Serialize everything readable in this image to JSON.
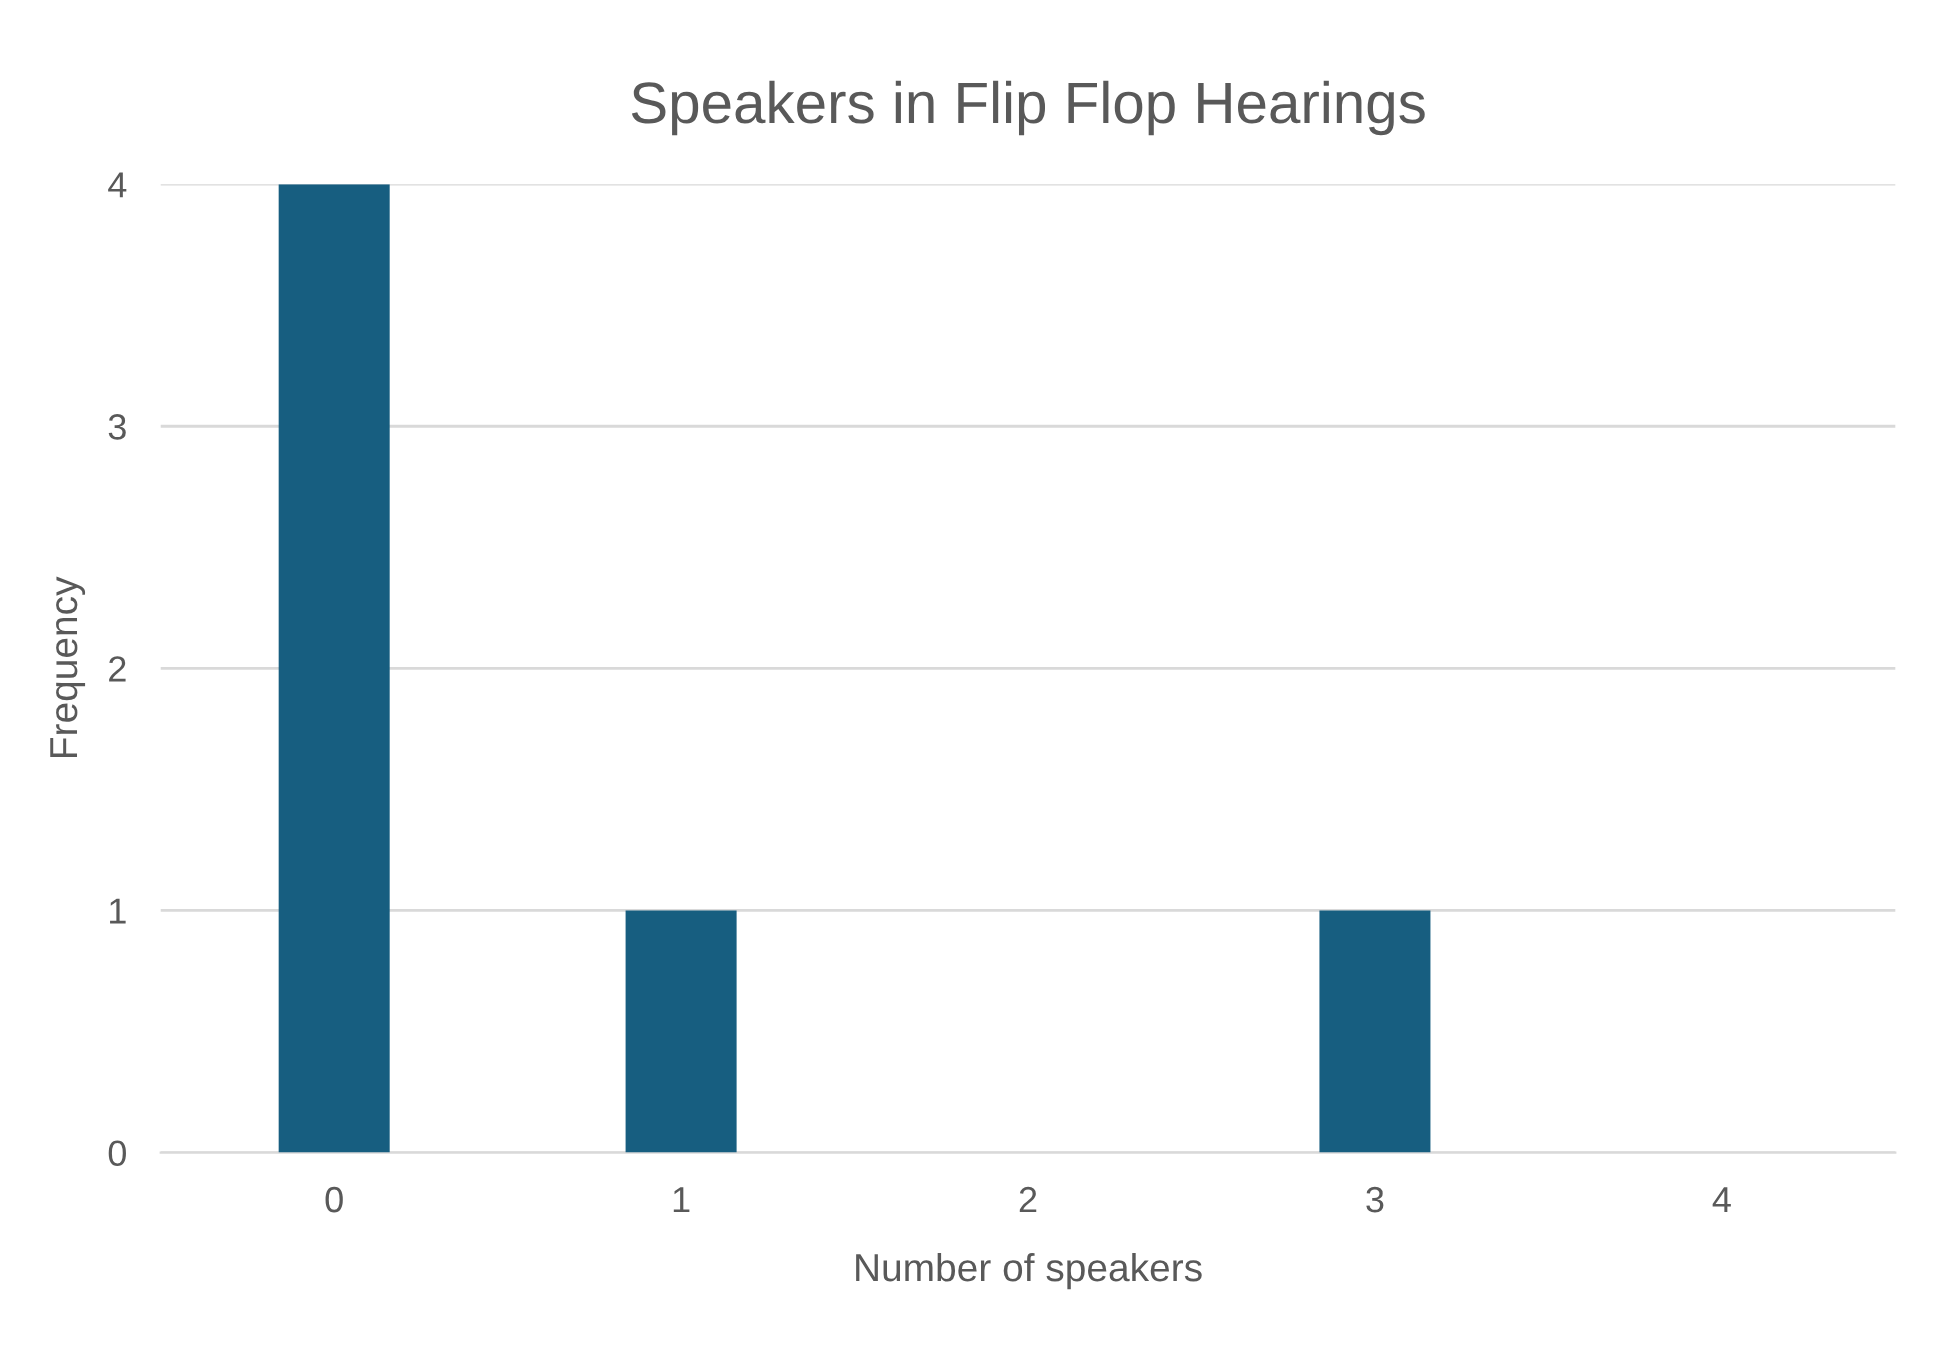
{
  "chart_data": {
    "type": "bar",
    "title": "Speakers in Flip Flop Hearings",
    "xlabel": "Number of speakers",
    "ylabel": "Frequency",
    "categories": [
      "0",
      "1",
      "2",
      "3",
      "4"
    ],
    "values": [
      4,
      1,
      0,
      1,
      0
    ],
    "color": "#175e80",
    "ylim": [
      0,
      4
    ],
    "yticks": [
      0,
      1,
      2,
      3,
      4
    ],
    "grid": "y"
  }
}
